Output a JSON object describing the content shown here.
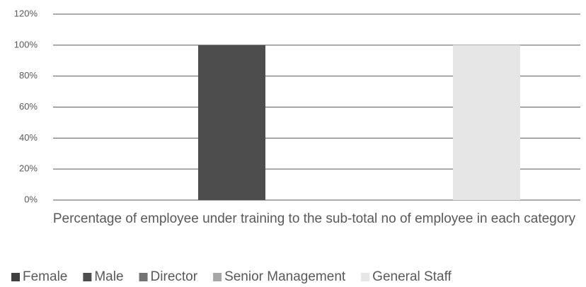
{
  "chart_data": {
    "type": "bar",
    "categories": [
      "Percentage of employee under training to the sub-total no of employee in each category"
    ],
    "series": [
      {
        "name": "Female",
        "color": "#3f3f3f",
        "values": [
          0
        ]
      },
      {
        "name": "Male",
        "color": "#4d4d4d",
        "values": [
          100
        ]
      },
      {
        "name": "Director",
        "color": "#737373",
        "values": [
          0
        ]
      },
      {
        "name": "Senior Management",
        "color": "#a6a6a6",
        "values": [
          0
        ]
      },
      {
        "name": "General Staff",
        "color": "#e6e6e6",
        "values": [
          100
        ]
      }
    ],
    "ylim": [
      0,
      120
    ],
    "yticks": [
      {
        "value": 0,
        "label": "0%"
      },
      {
        "value": 20,
        "label": "20%"
      },
      {
        "value": 40,
        "label": "40%"
      },
      {
        "value": 60,
        "label": "60%"
      },
      {
        "value": 80,
        "label": "80%"
      },
      {
        "value": 100,
        "label": "100%"
      },
      {
        "value": 120,
        "label": "120%"
      }
    ],
    "grid": true,
    "legend": "bottom"
  }
}
